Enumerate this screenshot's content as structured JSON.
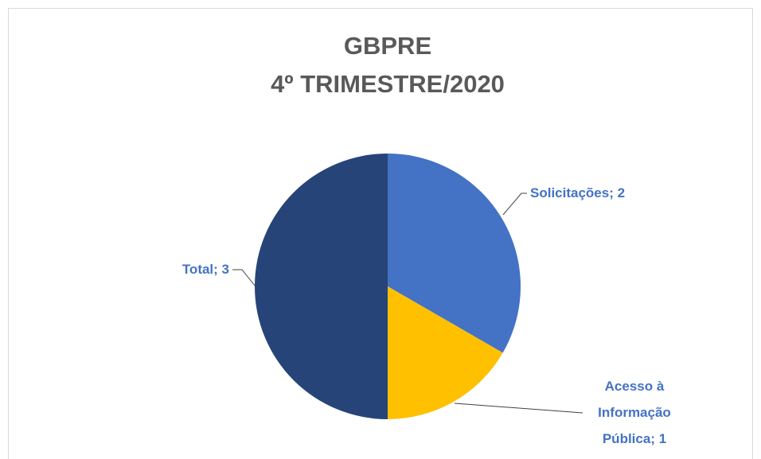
{
  "chart_data": {
    "type": "pie",
    "title": "GBPRE",
    "subtitle": "4º TRIMESTRE/2020",
    "categories": [
      "Solicitações",
      "Acesso à Informação Pública",
      "Total"
    ],
    "values": [
      2,
      1,
      3
    ],
    "value_labels": [
      "Solicitações; 2",
      "Acesso à Informação Pública; 1",
      "Total; 3"
    ],
    "colors": [
      "#4472c4",
      "#ffc000",
      "#264478"
    ],
    "label_color": "#4472c4"
  }
}
